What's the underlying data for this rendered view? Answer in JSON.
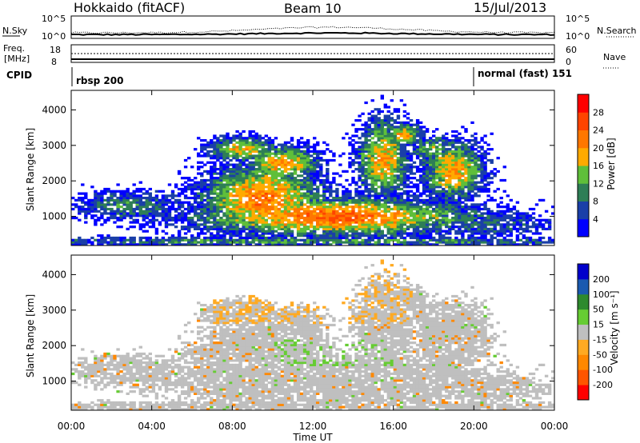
{
  "header": {
    "left": "Hokkaido (fitACF)",
    "center": "Beam 10",
    "right": "15/Jul/2013"
  },
  "aux": {
    "nsky_label": "N.Sky",
    "nsky_ticks": [
      "10^5",
      "10^0"
    ],
    "nsearch_label": "N.Search",
    "nsearch_ticks": [
      "10^5",
      "10^0"
    ],
    "freq_label_1": "Freq.",
    "freq_label_2": "[MHz]",
    "freq_ticks": [
      "18",
      "8"
    ],
    "nave_label": "Nave",
    "nave_ticks": [
      "60",
      "0"
    ],
    "cpid_label": "CPID",
    "cpid_1": "rbsp 200",
    "cpid_2": "normal (fast) 151"
  },
  "colors": {
    "power": [
      "#0000ff",
      "#1a3fa8",
      "#2e7e56",
      "#5fbf3a",
      "#ffaa00",
      "#ff7700",
      "#ff4400",
      "#ff0000"
    ],
    "velocity": [
      "#ff0000",
      "#ff5500",
      "#ff8800",
      "#ffaa22",
      "#bfbfbf",
      "#66cc33",
      "#2e8a2e",
      "#1a5ab0",
      "#0000cc"
    ],
    "ground": "#bfbfbf"
  },
  "chart_data": [
    {
      "type": "heatmap",
      "panel": "power",
      "ylabel": "Slant Range [km]",
      "yticks": [
        "1000",
        "2000",
        "3000",
        "4000"
      ],
      "xticks": [
        "00:00",
        "04:00",
        "08:00",
        "12:00",
        "16:00",
        "20:00",
        "00:00"
      ],
      "ylim": [
        180,
        4550
      ],
      "xlim_hours": [
        0,
        24
      ],
      "colorbar_label": "Power [dB]",
      "colorbar_ticks": [
        "4",
        "8",
        "12",
        "16",
        "20",
        "24",
        "28"
      ]
    },
    {
      "type": "heatmap",
      "panel": "velocity",
      "ylabel": "Slant Range [km]",
      "yticks": [
        "1000",
        "2000",
        "3000",
        "4000"
      ],
      "xticks": [
        "00:00",
        "04:00",
        "08:00",
        "12:00",
        "16:00",
        "20:00",
        "00:00"
      ],
      "xlabel": "Time UT",
      "ylim": [
        180,
        4550
      ],
      "xlim_hours": [
        0,
        24
      ],
      "colorbar_label": "Velocity [m s⁻¹]",
      "colorbar_ticks": [
        "200",
        "100",
        "50",
        "15",
        "-15",
        "-50",
        "-100",
        "-200"
      ]
    }
  ]
}
